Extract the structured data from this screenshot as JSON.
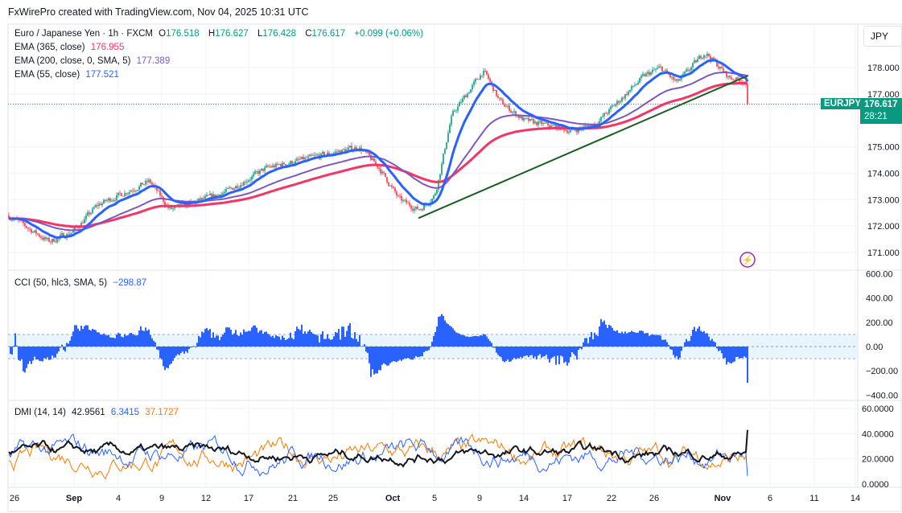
{
  "header": "FxWirePro created with TradingView.com, Nov 04, 2025 10:31 UTC",
  "symbol": {
    "name": "Euro / Japanese Yen · 1h · FXCM",
    "o_label": "O",
    "o": "176.518",
    "h_label": "H",
    "h": "176.627",
    "l_label": "L",
    "l": "176.428",
    "c_label": "C",
    "c": "176.617",
    "change": "+0.099 (+0.06%)",
    "ticker": "EURJPY",
    "last": "176.617",
    "countdown": "28:21",
    "currency": "JPY"
  },
  "indicators": [
    {
      "label": "EMA (365, close)",
      "value": "176.955",
      "color": "#f23665"
    },
    {
      "label": "EMA (200, close, 0, SMA, 5)",
      "value": "177.389",
      "color": "#7e57c2"
    },
    {
      "label": "EMA (55, close)",
      "value": "177.521",
      "color": "#2962ff"
    }
  ],
  "cci": {
    "label": "CCI (50, hlc3, SMA, 5)",
    "value": "−298.87",
    "color": "#2962ff"
  },
  "dmi": {
    "label": "DMI (14, 14)",
    "adx": "42.9561",
    "plus": "6.3415",
    "minus": "37.1727",
    "colors": [
      "#131722",
      "#2962ff",
      "#f57c00"
    ]
  },
  "colors": {
    "up": "#089981",
    "down": "#f23645",
    "trendline": "#1b5e20"
  },
  "chart_data": {
    "type": "line",
    "title": "Euro / Japanese Yen · 1h · FXCM",
    "price_axis": {
      "ticks": [
        "178.000",
        "177.000",
        "175.000",
        "174.000",
        "173.000",
        "172.000",
        "171.000"
      ],
      "range": [
        170.5,
        179.5
      ]
    },
    "cci_axis": {
      "ticks": [
        "600.00",
        "400.00",
        "200.00",
        "0.00",
        "−200.00",
        "−400.00"
      ],
      "range": [
        -450,
        620
      ],
      "band": [
        -100,
        100
      ]
    },
    "dmi_axis": {
      "ticks": [
        "60.0000",
        "40.0000",
        "20.0000",
        "0.0000"
      ],
      "range": [
        0,
        62
      ]
    },
    "x_ticks": [
      "26",
      "Sep",
      "4",
      "9",
      "12",
      "17",
      "21",
      "25",
      "Oct",
      "5",
      "9",
      "14",
      "17",
      "22",
      "26",
      "Nov",
      "6",
      "11",
      "14"
    ],
    "price_path": [
      [
        "Aug 26",
        172.4
      ],
      [
        "Aug 28",
        171.4
      ],
      [
        "Sep 1",
        171.8
      ],
      [
        "Sep 3",
        172.8
      ],
      [
        "Sep 8",
        173.7
      ],
      [
        "Sep 9",
        172.6
      ],
      [
        "Sep 17",
        173.3
      ],
      [
        "Sep 21",
        174.2
      ],
      [
        "Sep 26",
        175.0
      ],
      [
        "Sep 29",
        174.2
      ],
      [
        "Oct 1",
        173.0
      ],
      [
        "Oct 3",
        172.6
      ],
      [
        "Oct 4",
        173.2
      ],
      [
        "Oct 6",
        176.2
      ],
      [
        "Oct 8",
        177.9
      ],
      [
        "Oct 10",
        176.7
      ],
      [
        "Oct 14",
        176.0
      ],
      [
        "Oct 17",
        175.6
      ],
      [
        "Oct 20",
        175.9
      ],
      [
        "Oct 23",
        177.7
      ],
      [
        "Oct 25",
        178.0
      ],
      [
        "Oct 27",
        177.4
      ],
      [
        "Oct 29",
        178.6
      ],
      [
        "Oct 31",
        177.6
      ],
      [
        "Nov 3",
        177.5
      ],
      [
        "Nov 4",
        176.6
      ]
    ],
    "trendline": [
      [
        "Oct 3",
        172.3
      ],
      [
        "Nov 4",
        177.7
      ]
    ]
  }
}
